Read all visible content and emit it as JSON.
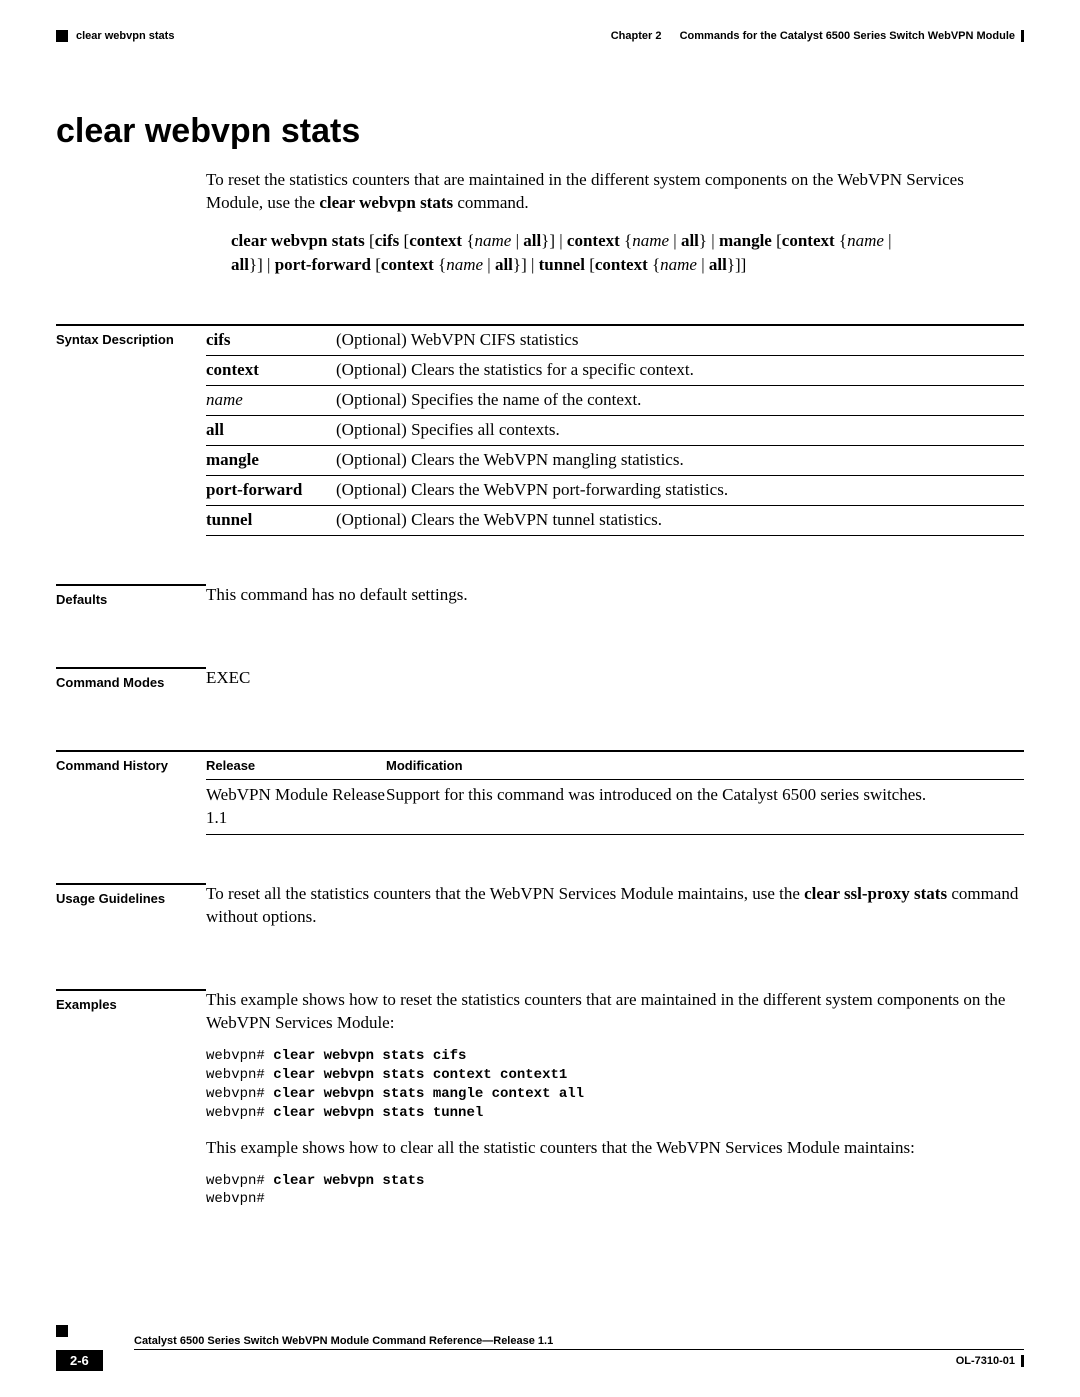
{
  "header": {
    "chapter_label": "Chapter 2",
    "chapter_title": "Commands for the Catalyst 6500 Series Switch WebVPN Module",
    "running_head": "clear webvpn stats"
  },
  "title": "clear webvpn stats",
  "intro": {
    "p1_a": "To reset the statistics counters that are maintained in the different system components on the WebVPN Services Module, use the ",
    "p1_b": "clear webvpn stats",
    "p1_c": " command."
  },
  "syntax_line": {
    "cmd": "clear webvpn stats",
    "cifs": "cifs",
    "context": "context",
    "name": "name",
    "all": "all",
    "mangle": "mangle",
    "portforward": "port-forward",
    "tunnel": "tunnel"
  },
  "sections": {
    "syntax_label": "Syntax Description",
    "defaults_label": "Defaults",
    "modes_label": "Command Modes",
    "history_label": "Command History",
    "usage_label": "Usage Guidelines",
    "examples_label": "Examples"
  },
  "syntax_table": {
    "r1k": "cifs",
    "r1v": "(Optional) WebVPN CIFS statistics",
    "r2k": "context",
    "r2v": "(Optional) Clears the statistics for a specific context.",
    "r3k": "name",
    "r3v": "(Optional) Specifies the name of the context.",
    "r4k": "all",
    "r4v": "(Optional) Specifies all contexts.",
    "r5k": "mangle",
    "r5v": "(Optional) Clears the WebVPN mangling statistics.",
    "r6k": "port-forward",
    "r6v": "(Optional) Clears the WebVPN port-forwarding statistics.",
    "r7k": "tunnel",
    "r7v": "(Optional) Clears the WebVPN tunnel statistics."
  },
  "defaults_text": "This command has no default settings.",
  "modes_text": "EXEC",
  "history": {
    "h1": "Release",
    "h2": "Modification",
    "rel": "WebVPN Module Release 1.1",
    "mod": "Support for this command was introduced on the Catalyst 6500 series switches."
  },
  "usage": {
    "a": "To reset all the statistics counters that the WebVPN Services Module maintains, use the ",
    "b": "clear ssl-proxy stats",
    "c": " command without options."
  },
  "examples": {
    "intro1": "This example shows how to reset the statistics counters that are maintained in the different system components on the WebVPN Services Module:",
    "code1_p": "webvpn# ",
    "code1_1": "clear webvpn stats cifs",
    "code1_2": "clear webvpn stats context context1",
    "code1_3": "clear webvpn stats mangle context all",
    "code1_4": "clear webvpn stats tunnel",
    "intro2": "This example shows how to clear all the statistic counters that the WebVPN Services Module maintains:",
    "code2_1": "clear webvpn stats",
    "code2_2": "webvpn#"
  },
  "footer": {
    "book": "Catalyst 6500 Series Switch WebVPN Module Command Reference—Release 1.1",
    "page": "2-6",
    "doc": "OL-7310-01"
  }
}
